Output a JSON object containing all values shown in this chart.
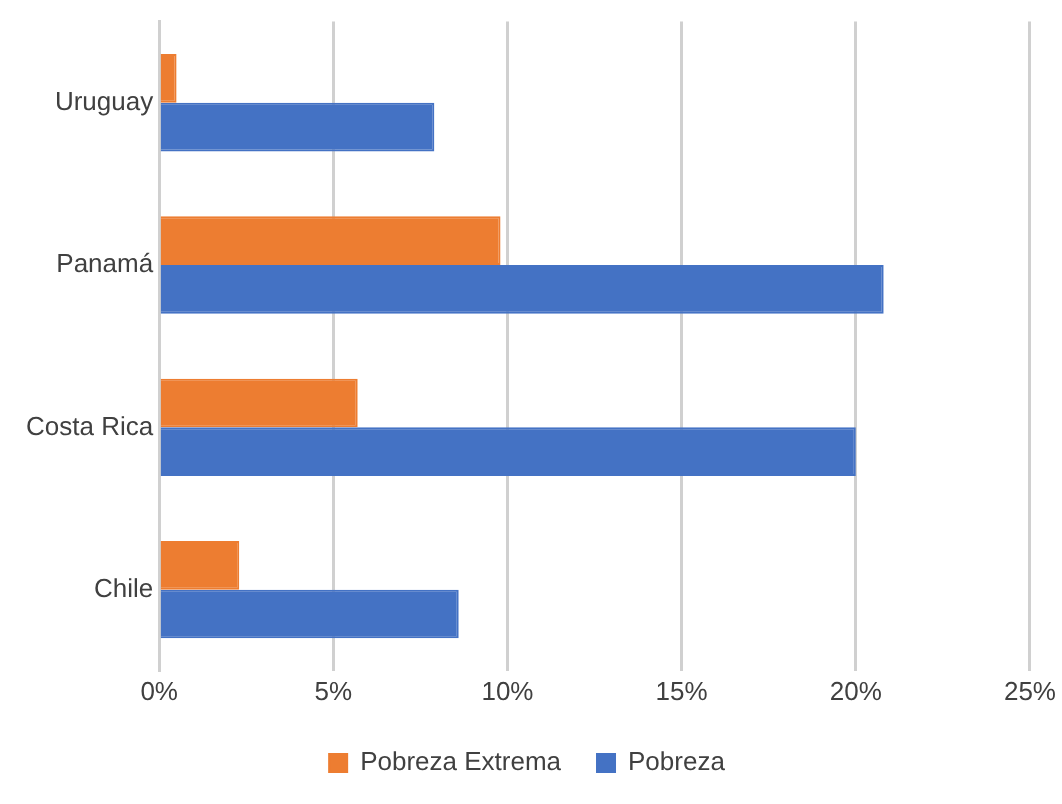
{
  "chart_data": {
    "type": "bar",
    "orientation": "horizontal",
    "categories": [
      "Uruguay",
      "Panamá",
      "Costa Rica",
      "Chile"
    ],
    "series": [
      {
        "name": "Pobreza Extrema",
        "color": "#ed7d31",
        "values": [
          0.5,
          9.8,
          5.7,
          2.3
        ]
      },
      {
        "name": "Pobreza",
        "color": "#4472c4",
        "values": [
          7.9,
          20.8,
          20.0,
          8.6
        ]
      }
    ],
    "xlim": [
      0,
      25
    ],
    "xticks": [
      {
        "value": 0,
        "label": "0%"
      },
      {
        "value": 5,
        "label": "5%"
      },
      {
        "value": 10,
        "label": "10%"
      },
      {
        "value": 15,
        "label": "15%"
      },
      {
        "value": 20,
        "label": "20%"
      },
      {
        "value": 25,
        "label": "25%"
      }
    ],
    "grid": "x",
    "legend": "bottom"
  }
}
